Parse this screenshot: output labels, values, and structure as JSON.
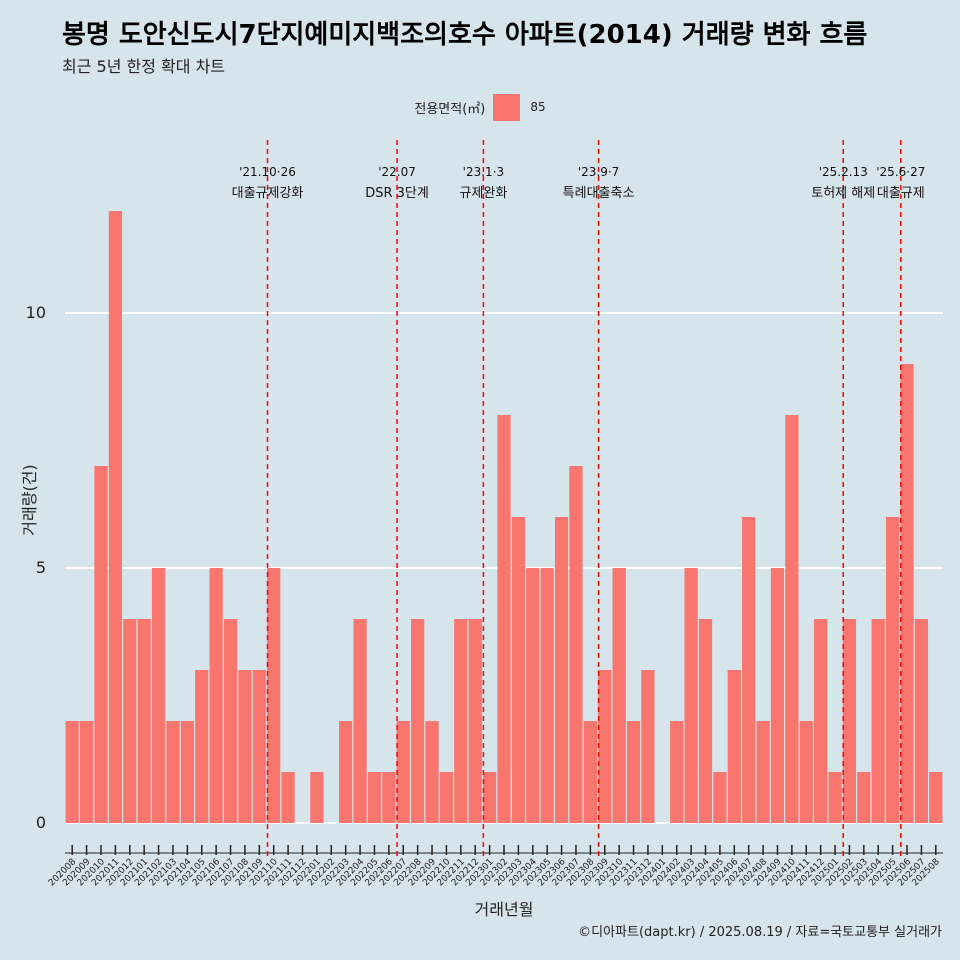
{
  "title": "봉명 도안신도시7단지예미지백조의호수 아파트(2014) 거래량 변화 흐름",
  "subtitle": "최근 5년 한정 확대 차트",
  "caption": "©디아파트(dapt.kr) / 2025.08.19 / 자료=국토교통부 실거래가",
  "colors": {
    "bar": "#f8766d",
    "background": "#d6e4eb",
    "grid": "#ffffff",
    "event_line": "#ff0000"
  },
  "chart_data": {
    "type": "bar",
    "xlabel": "거래년월",
    "ylabel": "거래량(건)",
    "ylim": [
      0,
      12
    ],
    "yticks": [
      0,
      5,
      10
    ],
    "grid": "horizontal major lines",
    "legend": {
      "title": "전용면적(㎡)",
      "placement": "top-center",
      "entries": [
        "85"
      ]
    },
    "categories": [
      "202008",
      "202009",
      "202010",
      "202011",
      "202012",
      "202101",
      "202102",
      "202103",
      "202104",
      "202105",
      "202106",
      "202107",
      "202108",
      "202109",
      "202110",
      "202111",
      "202112",
      "202201",
      "202202",
      "202203",
      "202204",
      "202205",
      "202206",
      "202207",
      "202208",
      "202209",
      "202210",
      "202211",
      "202212",
      "202301",
      "202302",
      "202303",
      "202304",
      "202305",
      "202306",
      "202307",
      "202308",
      "202309",
      "202310",
      "202311",
      "202312",
      "202401",
      "202402",
      "202403",
      "202404",
      "202405",
      "202406",
      "202407",
      "202408",
      "202409",
      "202410",
      "202411",
      "202412",
      "202501",
      "202502",
      "202503",
      "202504",
      "202505",
      "202506",
      "202507",
      "202508"
    ],
    "series": [
      {
        "name": "85",
        "values": [
          2,
          2,
          7,
          12,
          4,
          4,
          5,
          2,
          2,
          3,
          5,
          4,
          3,
          3,
          5,
          1,
          0,
          1,
          0,
          2,
          4,
          1,
          1,
          2,
          4,
          2,
          1,
          4,
          4,
          1,
          8,
          6,
          5,
          5,
          6,
          7,
          2,
          3,
          5,
          2,
          3,
          0,
          2,
          5,
          4,
          1,
          3,
          6,
          2,
          5,
          8,
          2,
          4,
          1,
          4,
          1,
          4,
          6,
          9,
          4,
          1
        ]
      }
    ],
    "events": [
      {
        "x": "202110",
        "date": "'21.10·26",
        "label": "대출규제강화"
      },
      {
        "x": "202207",
        "date": "'22.07",
        "label": "DSR 3단계"
      },
      {
        "x": "202301",
        "date": "'23.1·3",
        "label": "규제완화"
      },
      {
        "x": "202309",
        "date": "'23.9·7",
        "label": "특례대출축소"
      },
      {
        "x": "202502",
        "date": "'25.2.13",
        "label": "토허제 해제"
      },
      {
        "x": "202506",
        "date": "'25.6·27",
        "label": "대출규제"
      }
    ]
  }
}
